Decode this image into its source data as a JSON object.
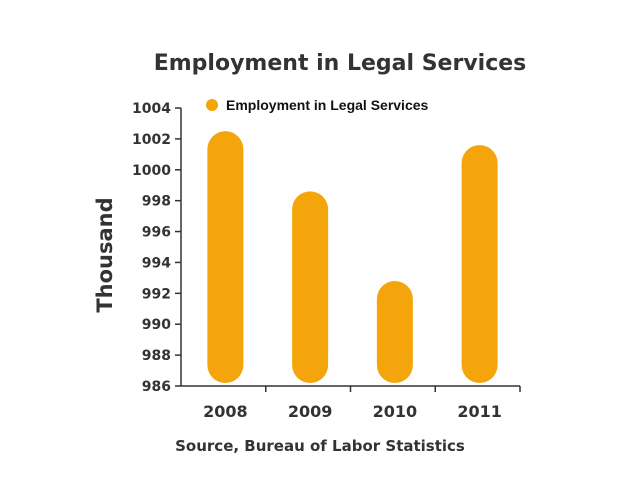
{
  "chart_data": {
    "type": "bar",
    "title": "Employment in Legal Services",
    "ylabel": "Thousand",
    "xlabel": "",
    "source": "Source, Bureau of Labor Statistics",
    "categories": [
      "2008",
      "2009",
      "2010",
      "2011"
    ],
    "series": [
      {
        "name": "Employment in Legal Services",
        "values": [
          1002.5,
          998.6,
          992.8,
          1001.6
        ],
        "color": "#F5A50C"
      }
    ],
    "ylim": [
      986,
      1004
    ],
    "yticks": [
      986,
      988,
      990,
      992,
      994,
      996,
      998,
      1000,
      1002,
      1004
    ],
    "grid": false,
    "legend": "top-left",
    "bar_style": "rounded"
  }
}
